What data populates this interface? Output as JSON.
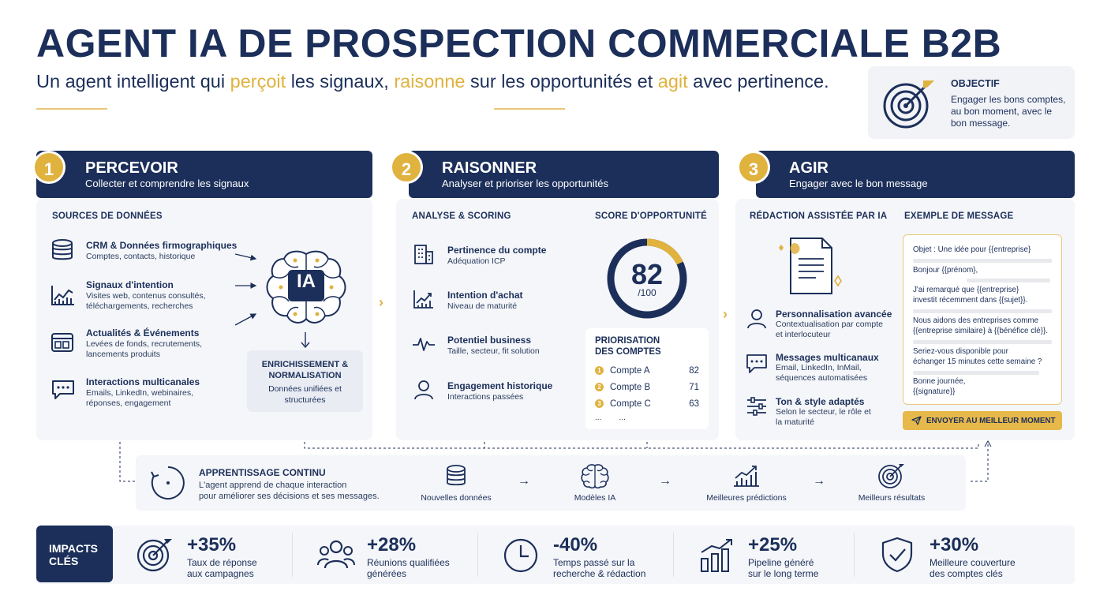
{
  "title": "AGENT IA DE PROSPECTION COMMERCIALE B2B",
  "subtitle": {
    "p1": "Un agent intelligent qui ",
    "h1": "perçoit",
    "p2": " les signaux, ",
    "h2": "raisonne",
    "p3": " sur les opportunités et ",
    "h3": "agit",
    "p4": " avec pertinence."
  },
  "objective": {
    "label": "OBJECTIF",
    "text": "Engager les bons comptes, au bon moment, avec le bon message.",
    "icon": "target-icon"
  },
  "colors": {
    "navy": "#1c2f5a",
    "gold": "#e0b23e",
    "panel": "#f4f6f9"
  },
  "steps": [
    {
      "num": "1",
      "title": "PERCEVOIR",
      "subtitle": "Collecter et comprendre les signaux"
    },
    {
      "num": "2",
      "title": "RAISONNER",
      "subtitle": "Analyser et prioriser les opportunités"
    },
    {
      "num": "3",
      "title": "AGIR",
      "subtitle": "Engager avec le bon message"
    }
  ],
  "percevoir": {
    "section_label": "SOURCES DE DONNÉES",
    "sources": [
      {
        "title": "CRM & Données firmographiques",
        "desc": [
          "Comptes, contacts, historique"
        ],
        "icon": "database-icon"
      },
      {
        "title": "Signaux d'intention",
        "desc": [
          "Visites web, contenus consultés,",
          "téléchargements, recherches"
        ],
        "icon": "chart-icon"
      },
      {
        "title": "Actualités & Événements",
        "desc": [
          "Levées de fonds, recrutements,",
          "lancements produits"
        ],
        "icon": "calendar-icon"
      },
      {
        "title": "Interactions multicanales",
        "desc": [
          "Emails, LinkedIn, webinaires,",
          "réponses, engagement"
        ],
        "icon": "chat-icon"
      }
    ],
    "brain_label": "IA",
    "enrichment": {
      "title": [
        "ENRICHISSEMENT &",
        "NORMALISATION"
      ],
      "desc": [
        "Données unifiées et",
        "structurées"
      ]
    }
  },
  "raisonner": {
    "section_label": "ANALYSE & SCORING",
    "score_label": "SCORE D'OPPORTUNITÉ",
    "score": {
      "value": 82,
      "max": 100,
      "display": "82",
      "den": "/100"
    },
    "criteria": [
      {
        "title": "Pertinence du compte",
        "desc": "Adéquation ICP",
        "icon": "building-icon"
      },
      {
        "title": "Intention d'achat",
        "desc": "Niveau de maturité",
        "icon": "growth-icon"
      },
      {
        "title": "Potentiel business",
        "desc": "Taille, secteur, fit solution",
        "icon": "pulse-icon"
      },
      {
        "title": "Engagement historique",
        "desc": "Interactions passées",
        "icon": "user-icon"
      }
    ],
    "priorisation": {
      "title": [
        "PRIORISATION",
        "DES COMPTES"
      ],
      "rows": [
        {
          "rank": "1",
          "name": "Compte A",
          "score": "82"
        },
        {
          "rank": "2",
          "name": "Compte B",
          "score": "71"
        },
        {
          "rank": "3",
          "name": "Compte C",
          "score": "63"
        }
      ],
      "more": "...        ..."
    }
  },
  "agir": {
    "section_label": "RÉDACTION ASSISTÉE PAR IA",
    "example_label": "EXEMPLE DE MESSAGE",
    "features": [
      {
        "title": "Personnalisation avancée",
        "desc": [
          "Contextualisation par compte",
          "et interlocuteur"
        ],
        "icon": "person-icon"
      },
      {
        "title": "Messages multicanaux",
        "desc": [
          "Email, LinkedIn, InMail,",
          "séquences automatisées"
        ],
        "icon": "message-icon"
      },
      {
        "title": "Ton & style adaptés",
        "desc": [
          "Selon le secteur, le rôle et",
          "la maturité"
        ],
        "icon": "sliders-icon"
      }
    ],
    "message": {
      "subject": "Objet : Une idée pour {{entreprise}",
      "greeting": "Bonjour {{prénom},",
      "p1": [
        "J'ai remarqué que {{entreprise}",
        "investit récemment dans {{sujet}}."
      ],
      "p2": [
        "Nous aidons des entreprises comme",
        "{{entreprise similaire} à {{bénéfice clé}}."
      ],
      "p3": [
        "Seriez-vous disponible pour",
        "échanger 15 minutes cette semaine ?"
      ],
      "closing": "Bonne journée,",
      "signature": "{{signature}}"
    },
    "send_button": "ENVOYER AU MEILLEUR MOMENT"
  },
  "learning": {
    "title": "APPRENTISSAGE CONTINU",
    "desc": [
      "L'agent apprend de chaque interaction",
      "pour améliorer ses décisions et ses messages."
    ],
    "stages": [
      {
        "label": "Nouvelles données",
        "icon": "database-icon"
      },
      {
        "label": "Modèles IA",
        "icon": "brain-icon"
      },
      {
        "label": "Meilleures prédictions",
        "icon": "trend-icon"
      },
      {
        "label": "Meilleurs résultats",
        "icon": "target-icon"
      }
    ]
  },
  "impacts": {
    "label": [
      "IMPACTS",
      "CLÉS"
    ],
    "items": [
      {
        "value": "+35%",
        "desc": [
          "Taux de réponse",
          "aux campagnes"
        ],
        "icon": "target-icon"
      },
      {
        "value": "+28%",
        "desc": [
          "Réunions qualifiées",
          "générées"
        ],
        "icon": "team-icon"
      },
      {
        "value": "-40%",
        "desc": [
          "Temps passé sur la",
          "recherche & rédaction"
        ],
        "icon": "clock-icon"
      },
      {
        "value": "+25%",
        "desc": [
          "Pipeline généré",
          "sur le long terme"
        ],
        "icon": "bar-chart-icon"
      },
      {
        "value": "+30%",
        "desc": [
          "Meilleure couverture",
          "des comptes clés"
        ],
        "icon": "shield-icon"
      }
    ]
  }
}
